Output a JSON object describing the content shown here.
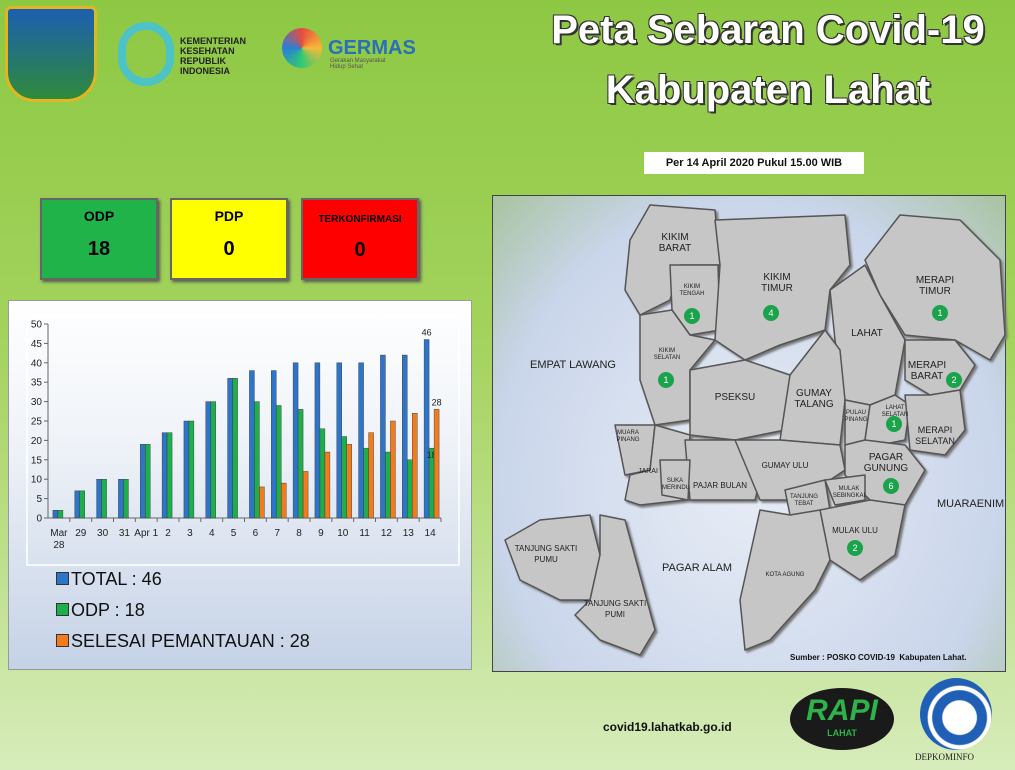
{
  "header": {
    "title_line1": "Peta Sebaran Covid-19",
    "title_line2": "Kabupaten Lahat",
    "ministry": "KEMENTERIAN KESEHATAN REPUBLIK INDONESIA",
    "germas": "GERMAS",
    "germas_tagline": "Gerakan Masyarakat Hidup Sehat",
    "date": "Per 14 April 2020 Pukul 15.00 WIB"
  },
  "stats": [
    {
      "label": "ODP",
      "value": 18
    },
    {
      "label": "PDP",
      "value": 0
    },
    {
      "label": "TERKONFIRMASI",
      "value": 0
    }
  ],
  "chart_data": {
    "type": "bar",
    "categories": [
      "Mar 28",
      "29",
      "30",
      "31",
      "Apr 1",
      "2",
      "3",
      "4",
      "5",
      "6",
      "7",
      "8",
      "9",
      "10",
      "11",
      "12",
      "13",
      "14"
    ],
    "series": [
      {
        "name": "TOTAL : 46",
        "color": "#2e74c8",
        "values": [
          2,
          7,
          10,
          10,
          19,
          22,
          25,
          30,
          36,
          38,
          38,
          40,
          40,
          40,
          40,
          42,
          42,
          46
        ]
      },
      {
        "name": "ODP : 18",
        "color": "#1fae4b",
        "values": [
          2,
          7,
          10,
          10,
          19,
          22,
          25,
          30,
          36,
          30,
          29,
          28,
          23,
          21,
          18,
          17,
          15,
          18
        ]
      },
      {
        "name": "SELESAI PEMANTAUAN : 28",
        "color": "#f07c1e",
        "values": [
          null,
          null,
          null,
          null,
          null,
          null,
          null,
          null,
          null,
          8,
          9,
          12,
          17,
          19,
          22,
          25,
          27,
          28
        ]
      }
    ],
    "ylim": [
      0,
      50
    ],
    "yticks": [
      0,
      5,
      10,
      15,
      20,
      25,
      30,
      35,
      40,
      45,
      50
    ],
    "grid": false,
    "label_last": true
  },
  "map": {
    "neighbors": [
      "EMPAT LAWANG",
      "MUARAENIM",
      "PAGAR ALAM"
    ],
    "regions": [
      {
        "name": "KIKIM BARAT"
      },
      {
        "name": "KIKIM TENGAH",
        "cases": 1
      },
      {
        "name": "KIKIM TIMUR",
        "cases": 4
      },
      {
        "name": "MERAPI TIMUR",
        "cases": 1
      },
      {
        "name": "LAHAT"
      },
      {
        "name": "KIKIM SELATAN",
        "cases": 1
      },
      {
        "name": "MERAPI BARAT",
        "cases": 2
      },
      {
        "name": "PSEKSU"
      },
      {
        "name": "GUMAY TALANG"
      },
      {
        "name": "PULAU PINANG"
      },
      {
        "name": "LAHAT SELATAN",
        "cases": 1
      },
      {
        "name": "MERAPI SELATAN"
      },
      {
        "name": "MUARA PINANG"
      },
      {
        "name": "JARAI"
      },
      {
        "name": "SUKA MERINDU"
      },
      {
        "name": "PAJAR BULAN"
      },
      {
        "name": "GUMAY ULU"
      },
      {
        "name": "PAGAR GUNUNG",
        "cases": 6
      },
      {
        "name": "MULAK SEBINGKAI"
      },
      {
        "name": "TANJUNG TEBAT"
      },
      {
        "name": "MULAK ULU",
        "cases": 2
      },
      {
        "name": "KOTA AGUNG"
      },
      {
        "name": "TANJUNG SAKTI PUMU"
      },
      {
        "name": "TANJUNG SAKTI PUMI"
      }
    ],
    "source": "Sumber : POSKO COVID-19  Kabupaten Lahat."
  },
  "footer": {
    "url": "covid19.lahatkab.go.id",
    "rapi": "RAPI",
    "rapi_sub": "LAHAT",
    "kominfo": "DEPKOMINFO"
  }
}
